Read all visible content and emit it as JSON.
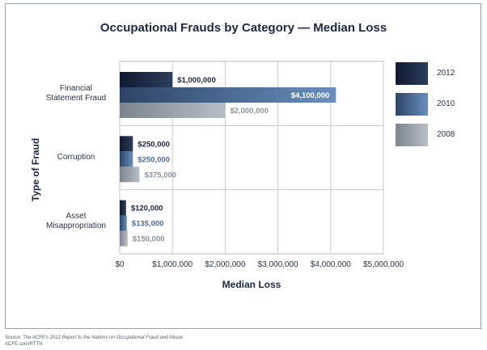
{
  "chart_data": {
    "type": "bar",
    "orientation": "horizontal",
    "title": "Occupational Frauds by Category — Median Loss",
    "xlabel": "Median Loss",
    "ylabel": "Type of Fraud",
    "categories": [
      "Financial\nStatement Fraud",
      "Corruption",
      "Asset\nMisappropriation"
    ],
    "series": [
      {
        "name": "2012",
        "values": [
          1000000,
          250000,
          120000
        ],
        "labels": [
          "$1,000,000",
          "$250,000",
          "$120,000"
        ],
        "color": "#1b2540"
      },
      {
        "name": "2010",
        "values": [
          4100000,
          250000,
          135000
        ],
        "labels": [
          "$4,100,000",
          "$250,000",
          "$135,000"
        ],
        "color": "#4a6d96"
      },
      {
        "name": "2008",
        "values": [
          2000000,
          375000,
          150000
        ],
        "labels": [
          "$2,000,000",
          "$375,000",
          "$150,000"
        ],
        "color": "#9098a2"
      }
    ],
    "xlim": [
      0,
      5000000
    ],
    "xticks": [
      0,
      1000000,
      2000000,
      3000000,
      4000000,
      5000000
    ],
    "xtick_labels": [
      "$0",
      "$1,000,000",
      "$2,000,000",
      "$3,000,000",
      "$4,000,000",
      "$5,000,000"
    ],
    "grid": true,
    "legend_position": "right"
  },
  "source": {
    "prefix": "Source: The ACFE's 2012 ",
    "italic": "Report to the Nations on Occupational Fraud and Abuse",
    "line2": "ACFE.com/RTTN"
  }
}
